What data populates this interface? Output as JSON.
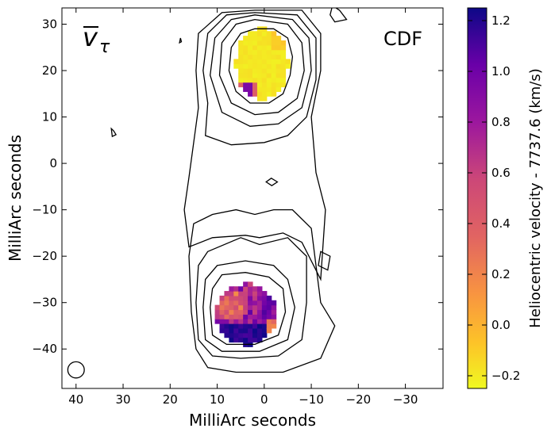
{
  "chart_data": {
    "type": "heatmap",
    "title": "",
    "panel_label": "CDF",
    "quantity_symbol": "v",
    "quantity_subscript": "τ",
    "xlabel": "MilliArc seconds",
    "ylabel": "MilliArc seconds",
    "xlim": [
      43,
      -38
    ],
    "ylim": [
      -48.5,
      33.5
    ],
    "xticks": [
      40,
      30,
      20,
      10,
      0,
      -10,
      -20,
      -30
    ],
    "yticks": [
      30,
      20,
      10,
      0,
      -10,
      -20,
      -30,
      -40
    ],
    "xtick_labels": [
      "40",
      "30",
      "20",
      "10",
      "0",
      "−10",
      "−20",
      "−30"
    ],
    "ytick_labels": [
      "30",
      "20",
      "10",
      "0",
      "−10",
      "−20",
      "−30",
      "−40"
    ],
    "colorbar": {
      "label": "Heliocentric velocity - 7737.6 (km/s)",
      "lim": [
        -0.25,
        1.25
      ],
      "ticks": [
        -0.2,
        0.0,
        0.2,
        0.4,
        0.6,
        0.8,
        1.0,
        1.2
      ],
      "tick_labels": [
        "−0.2",
        "0.0",
        "0.2",
        "0.4",
        "0.6",
        "0.8",
        "1.0",
        "1.2"
      ],
      "colormap": "plasma_r",
      "colors": [
        "#f0f921",
        "#fca636",
        "#e16462",
        "#b12a90",
        "#6a00a8",
        "#0d0887"
      ]
    },
    "regions": [
      {
        "name": "north component",
        "center": [
          0,
          21
        ],
        "velocity_range": [
          -0.25,
          -0.1
        ],
        "note": "few high-velocity pixels near (3, 16)"
      },
      {
        "name": "south component",
        "center": [
          4,
          -32
        ],
        "velocity_range": [
          0.0,
          1.25
        ]
      }
    ],
    "beam": {
      "center": [
        40,
        -44.5
      ],
      "major_mas": 3.5,
      "minor_mas": 3.5
    },
    "grid": false
  }
}
